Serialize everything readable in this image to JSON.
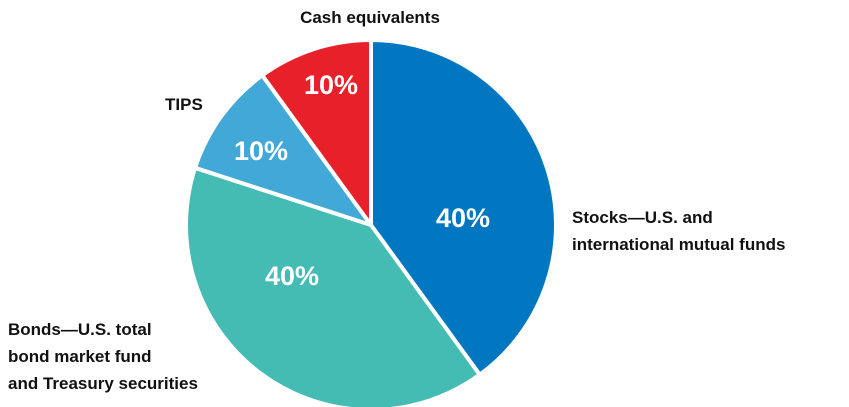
{
  "chart_data": {
    "type": "pie",
    "categories": [
      "Stocks—U.S. and\ninternational mutual funds",
      "Bonds—U.S. total\nbond market fund\nand Treasury securities",
      "TIPS",
      "Cash equivalents"
    ],
    "values": [
      40,
      40,
      10,
      10
    ],
    "value_labels": [
      "40%",
      "40%",
      "10%",
      "10%"
    ],
    "colors": [
      "#0077c0",
      "#44bcb4",
      "#41a8d8",
      "#e8202a"
    ]
  }
}
